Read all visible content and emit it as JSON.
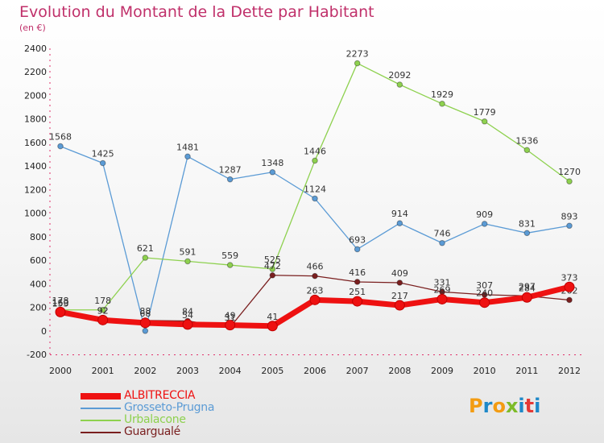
{
  "chart_data": {
    "type": "line",
    "title": "Evolution du Montant de la Dette par Habitant",
    "subtitle": "(en €)",
    "x": [
      "2000",
      "2001",
      "2002",
      "2003",
      "2004",
      "2005",
      "2006",
      "2007",
      "2008",
      "2009",
      "2010",
      "2011",
      "2012"
    ],
    "ylim": [
      -200,
      2400
    ],
    "yticks": [
      -200,
      0,
      200,
      400,
      600,
      800,
      1000,
      1200,
      1400,
      1600,
      1800,
      2000,
      2200,
      2400
    ],
    "grid": false,
    "legend_position": "bottom-left",
    "series": [
      {
        "name": "ALBITRECCIA",
        "color": "#ee1111",
        "values": [
          160,
          92,
          68,
          54,
          49,
          41,
          263,
          251,
          217,
          269,
          240,
          284,
          373
        ]
      },
      {
        "name": "Grosseto-Prugna",
        "color": "#5b9bd5",
        "values": [
          1568,
          1425,
          0,
          1481,
          1287,
          1348,
          1124,
          693,
          914,
          746,
          909,
          831,
          893
        ]
      },
      {
        "name": "Urbalacone",
        "color": "#8ed14f",
        "values": [
          178,
          178,
          621,
          591,
          559,
          525,
          1446,
          2273,
          2092,
          1929,
          1779,
          1536,
          1270
        ]
      },
      {
        "name": "Guargualé",
        "color": "#7a1f1f",
        "values": [
          153,
          92,
          88,
          84,
          31,
          472,
          466,
          416,
          409,
          331,
          307,
          297,
          262
        ]
      }
    ]
  },
  "brand": {
    "logo_letters": [
      "P",
      "r",
      "o",
      "x",
      "i",
      "t",
      "i"
    ]
  }
}
